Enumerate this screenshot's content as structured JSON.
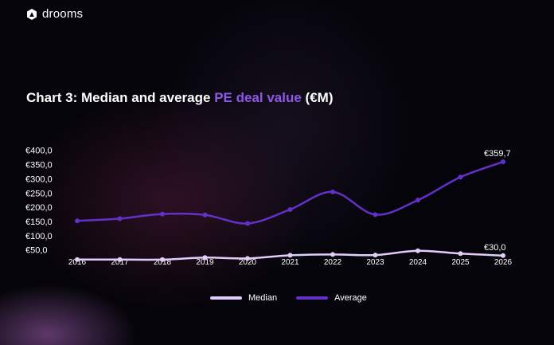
{
  "brand": {
    "name": "drooms"
  },
  "colors": {
    "median": "#e2cdfa",
    "average": "#6330c9",
    "accent": "#8f57ea",
    "background": "#05040a"
  },
  "chart_data": {
    "type": "line",
    "title_part1": "Chart 3: Median and average ",
    "title_accent": "PE deal value",
    "title_part3": " (€M)",
    "categories": [
      "2016",
      "2017",
      "2018",
      "2019",
      "2020",
      "2021",
      "2022",
      "2023",
      "2024",
      "2025",
      "2026"
    ],
    "y_ticks": [
      "€400,0",
      "€350,0",
      "€300,0",
      "€250,0",
      "€200,0",
      "€150,0",
      "€100,0",
      "€50,0"
    ],
    "ylim": [
      0,
      400
    ],
    "series": [
      {
        "name": "Median",
        "values": [
          16,
          16,
          16,
          23,
          20,
          31,
          34,
          32,
          47,
          37,
          30
        ],
        "end_label": "€30,0"
      },
      {
        "name": "Average",
        "values": [
          152,
          160,
          176,
          173,
          143,
          192,
          254,
          174,
          225,
          306,
          359.7
        ],
        "end_label": "€359,7"
      }
    ],
    "legend_position": "bottom",
    "grid": false
  }
}
